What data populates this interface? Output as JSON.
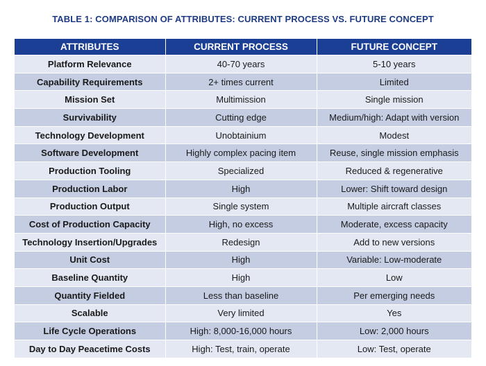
{
  "title": "TABLE 1: COMPARISON OF ATTRIBUTES: CURRENT PROCESS VS. FUTURE CONCEPT",
  "headers": [
    "ATTRIBUTES",
    "CURRENT PROCESS",
    "FUTURE CONCEPT"
  ],
  "rows": [
    [
      "Platform Relevance",
      "40-70 years",
      "5-10 years"
    ],
    [
      "Capability Requirements",
      "2+ times current",
      "Limited"
    ],
    [
      "Mission Set",
      "Multimission",
      "Single mission"
    ],
    [
      "Survivability",
      "Cutting edge",
      "Medium/high: Adapt with version"
    ],
    [
      "Technology Development",
      "Unobtainium",
      "Modest"
    ],
    [
      "Software Development",
      "Highly complex pacing item",
      "Reuse, single mission emphasis"
    ],
    [
      "Production Tooling",
      "Specialized",
      "Reduced & regenerative"
    ],
    [
      "Production Labor",
      "High",
      "Lower: Shift toward design"
    ],
    [
      "Production Output",
      "Single system",
      "Multiple aircraft classes"
    ],
    [
      "Cost of Production Capacity",
      "High, no excess",
      "Moderate, excess capacity"
    ],
    [
      "Technology Insertion/Upgrades",
      "Redesign",
      "Add to new versions"
    ],
    [
      "Unit Cost",
      "High",
      "Variable: Low-moderate"
    ],
    [
      "Baseline Quantity",
      "High",
      "Low"
    ],
    [
      "Quantity Fielded",
      "Less than baseline",
      "Per emerging needs"
    ],
    [
      "Scalable",
      "Very limited",
      "Yes"
    ],
    [
      "Life Cycle Operations",
      "High: 8,000-16,000 hours",
      "Low: 2,000 hours"
    ],
    [
      "Day to Day Peacetime Costs",
      "High: Test, train, operate",
      "Low: Test, operate"
    ]
  ]
}
